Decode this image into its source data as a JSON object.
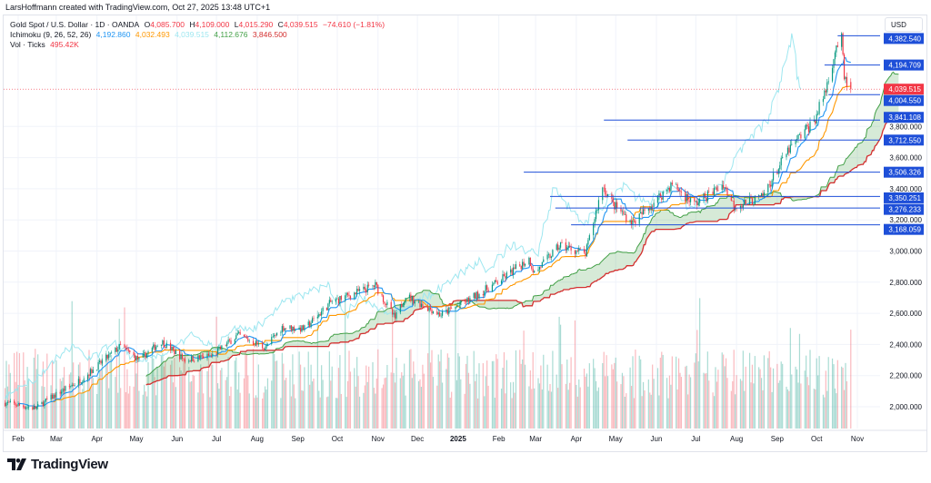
{
  "credit": "LarsHoffmann created with TradingView.com, Oct 27, 2025 13:48 UTC+1",
  "symbol": {
    "title": "Gold Spot / U.S. Dollar · 1D · OANDA",
    "open_label": "O",
    "open": "4,085.700",
    "high_label": "H",
    "high": "4,109.000",
    "low_label": "L",
    "low": "4,015.290",
    "close_label": "C",
    "close": "4,039.515",
    "change": "−74.610 (−1.81%)"
  },
  "ichimoku": {
    "title": "Ichimoku (9, 26, 52, 26)",
    "conversion": "4,192.860",
    "base": "4,032.493",
    "lagging": "4,039.515",
    "span_a": "4,112.676",
    "span_b": "3,846.500"
  },
  "volume": {
    "title": "Vol · Ticks",
    "value": "495.42K"
  },
  "currency": "USD",
  "colors": {
    "up": "#089981",
    "down": "#f23645",
    "conversion": "#2196f3",
    "base": "#ff9800",
    "lagging": "#9ee7f0",
    "span_a": "#43a047",
    "span_b": "#d32f2f",
    "level": "#1e4fd8",
    "price_tag": "#f23645"
  },
  "price_axis": {
    "ticks": [
      "2,000.000",
      "2,200.000",
      "2,400.000",
      "2,600.000",
      "2,800.000",
      "3,000.000",
      "3,200.000",
      "3,400.000",
      "3,600.000",
      "3,800.000"
    ],
    "tick_values": [
      2000,
      2200,
      2400,
      2600,
      2800,
      3000,
      3200,
      3400,
      3600,
      3800
    ]
  },
  "time_axis": {
    "labels": [
      "Feb",
      "Mar",
      "Apr",
      "May",
      "Jun",
      "Jul",
      "Aug",
      "Sep",
      "Oct",
      "Nov",
      "Dec",
      "2025",
      "Feb",
      "Mar",
      "Apr",
      "May",
      "Jun",
      "Jul",
      "Aug",
      "Sep",
      "Oct",
      "Nov"
    ],
    "dates": [
      "2024-02-01",
      "2024-03-01",
      "2024-04-01",
      "2024-05-01",
      "2024-06-01",
      "2024-07-01",
      "2024-08-01",
      "2024-09-01",
      "2024-10-01",
      "2024-11-01",
      "2024-12-01",
      "2025-01-01",
      "2025-02-01",
      "2025-03-01",
      "2025-04-01",
      "2025-05-01",
      "2025-06-01",
      "2025-07-01",
      "2025-08-01",
      "2025-09-01",
      "2025-10-01",
      "2025-11-01"
    ]
  },
  "levels": [
    {
      "label": "4,382.540",
      "value": 4382.54,
      "from": "2025-10-17"
    },
    {
      "label": "4,194.709",
      "value": 4194.709,
      "from": "2025-10-07"
    },
    {
      "label": "4,004.550",
      "value": 4004.55,
      "from": "2025-10-10"
    },
    {
      "label": "3,841.108",
      "value": 3841.108,
      "from": "2025-04-22"
    },
    {
      "label": "3,712.550",
      "value": 3712.55,
      "from": "2025-05-10"
    },
    {
      "label": "3,506.326",
      "value": 3506.326,
      "from": "2025-02-20"
    },
    {
      "label": "3,350.251",
      "value": 3350.251,
      "from": "2025-03-12"
    },
    {
      "label": "3,276.233",
      "value": 3276.233,
      "from": "2025-03-16"
    },
    {
      "label": "3,168.059",
      "value": 3168.059,
      "from": "2025-03-28"
    }
  ],
  "last_price": {
    "label": "4,039.515",
    "value": 4039.515
  },
  "chart_data": {
    "type": "candlestick",
    "title": "Gold Spot / U.S. Dollar · 1D · OANDA",
    "ylim": [
      1900,
      4450
    ],
    "approx_close_anchors": [
      [
        "2024-01-22",
        2025
      ],
      [
        "2024-02-14",
        1990
      ],
      [
        "2024-03-01",
        2080
      ],
      [
        "2024-03-21",
        2180
      ],
      [
        "2024-04-12",
        2340
      ],
      [
        "2024-04-19",
        2390
      ],
      [
        "2024-05-03",
        2300
      ],
      [
        "2024-05-20",
        2420
      ],
      [
        "2024-06-07",
        2300
      ],
      [
        "2024-06-28",
        2330
      ],
      [
        "2024-07-17",
        2460
      ],
      [
        "2024-08-07",
        2380
      ],
      [
        "2024-08-20",
        2510
      ],
      [
        "2024-09-06",
        2500
      ],
      [
        "2024-09-26",
        2670
      ],
      [
        "2024-10-30",
        2780
      ],
      [
        "2024-11-14",
        2565
      ],
      [
        "2024-11-22",
        2715
      ],
      [
        "2024-12-19",
        2590
      ],
      [
        "2025-01-10",
        2690
      ],
      [
        "2025-01-31",
        2800
      ],
      [
        "2025-02-24",
        2950
      ],
      [
        "2025-02-28",
        2860
      ],
      [
        "2025-03-20",
        3040
      ],
      [
        "2025-04-08",
        2980
      ],
      [
        "2025-04-21",
        3420
      ],
      [
        "2025-04-29",
        3300
      ],
      [
        "2025-05-14",
        3180
      ],
      [
        "2025-06-13",
        3430
      ],
      [
        "2025-06-30",
        3300
      ],
      [
        "2025-07-22",
        3430
      ],
      [
        "2025-07-30",
        3290
      ],
      [
        "2025-08-20",
        3340
      ],
      [
        "2025-09-09",
        3640
      ],
      [
        "2025-09-30",
        3850
      ],
      [
        "2025-10-08",
        4040
      ],
      [
        "2025-10-16",
        4320
      ],
      [
        "2025-10-20",
        4355
      ],
      [
        "2025-10-22",
        4100
      ],
      [
        "2025-10-27",
        4039.515
      ]
    ]
  }
}
